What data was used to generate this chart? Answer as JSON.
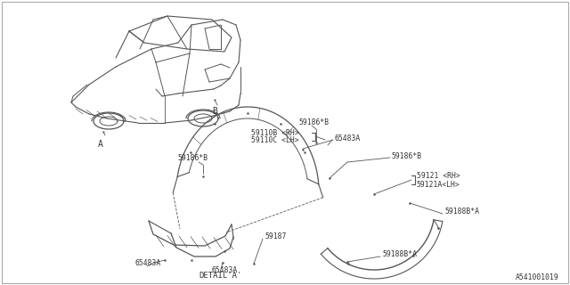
{
  "bg_color": "#ffffff",
  "line_color": "#555555",
  "text_color": "#333333",
  "title": "DETAIL'A'",
  "diagram_id": "A541001019",
  "font_size_label": 5.8,
  "font_size_title": 6.5,
  "font_size_id": 5.8,
  "labels": {
    "A": "A",
    "B": "B",
    "59110B_RH": "59110B <RH>",
    "59110C_LH": "59110C <LH>",
    "59186B_1": "59186*B",
    "59186B_2": "59186*B",
    "59186B_3": "59186*B",
    "65483A_1": "65483A",
    "65483A_2": "65483A",
    "65483A_3": "65483A",
    "59121_RH": "59121 <RH>",
    "59121A_LH": "59121A<LH>",
    "59187": "59187",
    "59188BA_1": "59188B*A",
    "59188BA_2": "59188B*A"
  }
}
